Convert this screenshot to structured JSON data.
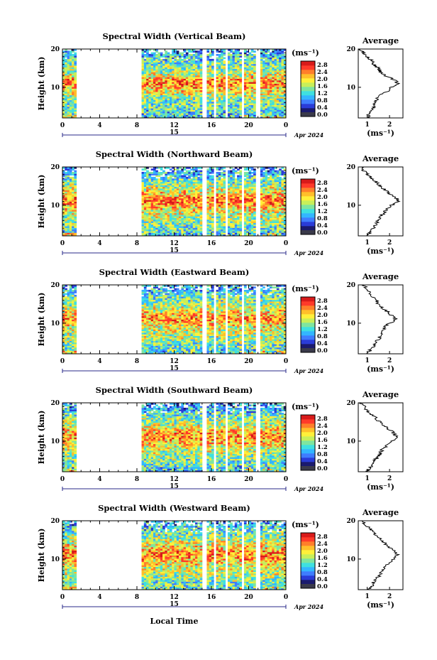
{
  "figure": {
    "x_label": "Local Time",
    "y_label": "Height (km)",
    "date_label": "Apr 2024",
    "day_marker": "15",
    "colorbar_unit": "(ms⁻¹)",
    "avg_title": "Average",
    "avg_xlabel": "(ms⁻¹)"
  },
  "chart_data": [
    {
      "type": "heatmap",
      "title": "Spectral Width (Vertical Beam)",
      "xlabel": "Local Time",
      "ylabel": "Height (km)",
      "x_ticks": [
        "0",
        "4",
        "8",
        "12",
        "16",
        "20",
        "0"
      ],
      "xlim": [
        0,
        24
      ],
      "ylim": [
        2,
        20
      ],
      "y_ticks": [
        "10",
        "20"
      ],
      "colorbar": {
        "unit": "(ms⁻¹)",
        "ticks": [
          "2.8",
          "2.4",
          "2.0",
          "1.6",
          "1.2",
          "0.8",
          "0.4",
          "0.0"
        ],
        "range": [
          0,
          3.0
        ]
      },
      "data_gaps_hours": [
        [
          1.6,
          8.6
        ],
        [
          15.0,
          15.4
        ],
        [
          16.2,
          16.6
        ],
        [
          17.5,
          17.8
        ],
        [
          19.2,
          19.6
        ],
        [
          20.8,
          21.2
        ]
      ],
      "average_profile": {
        "title": "Average",
        "xlabel": "(ms⁻¹)",
        "x_ticks": [
          "1",
          "2"
        ],
        "xlim": [
          0.6,
          2.6
        ],
        "y_ticks": [
          "10",
          "20"
        ],
        "height_km": [
          2,
          3,
          4,
          5,
          6,
          7,
          8,
          9,
          10,
          11,
          12,
          13,
          14,
          15,
          16,
          17,
          18,
          19,
          20
        ],
        "value": [
          1.0,
          1.1,
          1.15,
          1.3,
          1.3,
          1.45,
          1.6,
          1.9,
          2.1,
          2.4,
          2.2,
          1.8,
          1.6,
          1.5,
          1.3,
          1.2,
          1.0,
          0.85,
          0.7
        ]
      }
    },
    {
      "type": "heatmap",
      "title": "Spectral Width (Northward Beam)",
      "xlabel": "Local Time",
      "ylabel": "Height (km)",
      "x_ticks": [
        "0",
        "4",
        "8",
        "12",
        "16",
        "20",
        "0"
      ],
      "xlim": [
        0,
        24
      ],
      "ylim": [
        2,
        20
      ],
      "y_ticks": [
        "10",
        "20"
      ],
      "colorbar": {
        "unit": "(ms⁻¹)",
        "ticks": [
          "2.8",
          "2.4",
          "2.0",
          "1.6",
          "1.2",
          "0.8",
          "0.4",
          "0.0"
        ],
        "range": [
          0,
          3.0
        ]
      },
      "data_gaps_hours": [
        [
          1.6,
          8.6
        ],
        [
          15.0,
          15.4
        ],
        [
          16.2,
          16.6
        ],
        [
          17.5,
          17.8
        ],
        [
          19.2,
          19.6
        ],
        [
          20.8,
          21.2
        ]
      ],
      "average_profile": {
        "title": "Average",
        "xlabel": "(ms⁻¹)",
        "x_ticks": [
          "1",
          "2"
        ],
        "xlim": [
          0.6,
          2.6
        ],
        "y_ticks": [
          "10",
          "20"
        ],
        "height_km": [
          2,
          3,
          4,
          5,
          6,
          7,
          8,
          9,
          10,
          11,
          12,
          13,
          14,
          15,
          16,
          17,
          18,
          19,
          20
        ],
        "value": [
          1.0,
          1.15,
          1.25,
          1.4,
          1.5,
          1.6,
          1.75,
          1.9,
          2.1,
          2.4,
          2.3,
          2.0,
          1.8,
          1.6,
          1.4,
          1.2,
          1.0,
          0.85,
          0.75
        ]
      }
    },
    {
      "type": "heatmap",
      "title": "Spectral Width (Eastward Beam)",
      "xlabel": "Local Time",
      "ylabel": "Height (km)",
      "x_ticks": [
        "0",
        "4",
        "8",
        "12",
        "16",
        "20",
        "0"
      ],
      "xlim": [
        0,
        24
      ],
      "ylim": [
        2,
        20
      ],
      "y_ticks": [
        "10",
        "20"
      ],
      "colorbar": {
        "unit": "(ms⁻¹)",
        "ticks": [
          "2.8",
          "2.4",
          "2.0",
          "1.6",
          "1.2",
          "0.8",
          "0.4",
          "0.0"
        ],
        "range": [
          0,
          3.0
        ]
      },
      "data_gaps_hours": [
        [
          1.6,
          8.6
        ],
        [
          15.0,
          15.4
        ],
        [
          16.2,
          16.6
        ],
        [
          17.5,
          17.8
        ],
        [
          19.2,
          19.6
        ],
        [
          20.8,
          21.2
        ]
      ],
      "average_profile": {
        "title": "Average",
        "xlabel": "(ms⁻¹)",
        "x_ticks": [
          "1",
          "2"
        ],
        "xlim": [
          0.6,
          2.6
        ],
        "y_ticks": [
          "10",
          "20"
        ],
        "height_km": [
          2,
          3,
          4,
          5,
          6,
          7,
          8,
          9,
          10,
          11,
          12,
          13,
          14,
          15,
          16,
          17,
          18,
          19,
          20
        ],
        "value": [
          1.05,
          1.15,
          1.3,
          1.4,
          1.55,
          1.6,
          1.7,
          1.8,
          2.0,
          2.3,
          2.1,
          1.9,
          1.7,
          1.5,
          1.4,
          1.25,
          1.1,
          0.95,
          0.85
        ]
      }
    },
    {
      "type": "heatmap",
      "title": "Spectral Width (Southward Beam)",
      "xlabel": "Local Time",
      "ylabel": "Height (km)",
      "x_ticks": [
        "0",
        "4",
        "8",
        "12",
        "16",
        "20",
        "0"
      ],
      "xlim": [
        0,
        24
      ],
      "ylim": [
        2,
        20
      ],
      "y_ticks": [
        "10",
        "20"
      ],
      "colorbar": {
        "unit": "(ms⁻¹)",
        "ticks": [
          "2.8",
          "2.4",
          "2.0",
          "1.6",
          "1.2",
          "0.8",
          "0.4",
          "0.0"
        ],
        "range": [
          0,
          3.0
        ]
      },
      "data_gaps_hours": [
        [
          1.6,
          8.6
        ],
        [
          15.0,
          15.4
        ],
        [
          16.2,
          16.6
        ],
        [
          17.5,
          17.8
        ],
        [
          19.2,
          19.6
        ],
        [
          20.8,
          21.2
        ]
      ],
      "average_profile": {
        "title": "Average",
        "xlabel": "(ms⁻¹)",
        "x_ticks": [
          "1",
          "2"
        ],
        "xlim": [
          0.6,
          2.6
        ],
        "y_ticks": [
          "10",
          "20"
        ],
        "height_km": [
          2,
          3,
          4,
          5,
          6,
          7,
          8,
          9,
          10,
          11,
          12,
          13,
          14,
          15,
          16,
          17,
          18,
          19,
          20
        ],
        "value": [
          1.0,
          1.1,
          1.25,
          1.35,
          1.5,
          1.6,
          1.7,
          1.9,
          2.1,
          2.3,
          2.2,
          2.0,
          1.75,
          1.55,
          1.4,
          1.2,
          1.0,
          0.85,
          0.75
        ]
      }
    },
    {
      "type": "heatmap",
      "title": "Spectral Width (Westward Beam)",
      "xlabel": "Local Time",
      "ylabel": "Height (km)",
      "x_ticks": [
        "0",
        "4",
        "8",
        "12",
        "16",
        "20",
        "0"
      ],
      "xlim": [
        0,
        24
      ],
      "ylim": [
        2,
        20
      ],
      "y_ticks": [
        "10",
        "20"
      ],
      "colorbar": {
        "unit": "(ms⁻¹)",
        "ticks": [
          "2.8",
          "2.4",
          "2.0",
          "1.6",
          "1.2",
          "0.8",
          "0.4",
          "0.0"
        ],
        "range": [
          0,
          3.0
        ]
      },
      "data_gaps_hours": [
        [
          1.6,
          8.6
        ],
        [
          15.0,
          15.4
        ],
        [
          16.2,
          16.6
        ],
        [
          17.5,
          17.8
        ],
        [
          19.2,
          19.6
        ],
        [
          20.8,
          21.2
        ]
      ],
      "average_profile": {
        "title": "Average",
        "xlabel": "(ms⁻¹)",
        "x_ticks": [
          "1",
          "2"
        ],
        "xlim": [
          0.6,
          2.6
        ],
        "y_ticks": [
          "10",
          "20"
        ],
        "height_km": [
          2,
          3,
          4,
          5,
          6,
          7,
          8,
          9,
          10,
          11,
          12,
          13,
          14,
          15,
          16,
          17,
          18,
          19,
          20
        ],
        "value": [
          1.05,
          1.2,
          1.3,
          1.45,
          1.6,
          1.7,
          1.8,
          1.95,
          2.15,
          2.35,
          2.25,
          2.0,
          1.8,
          1.6,
          1.45,
          1.3,
          1.1,
          0.9,
          0.8
        ]
      }
    }
  ],
  "colors": {
    "colormap": [
      "#1a1a6e",
      "#2a3cd8",
      "#3f7dff",
      "#33b6ff",
      "#3fe0e0",
      "#7fe59f",
      "#c8ef5a",
      "#fff03a",
      "#ffbf2a",
      "#ff7f2a",
      "#ff3a2a",
      "#d81a1a"
    ],
    "zero_color": "#3a3a4a"
  }
}
